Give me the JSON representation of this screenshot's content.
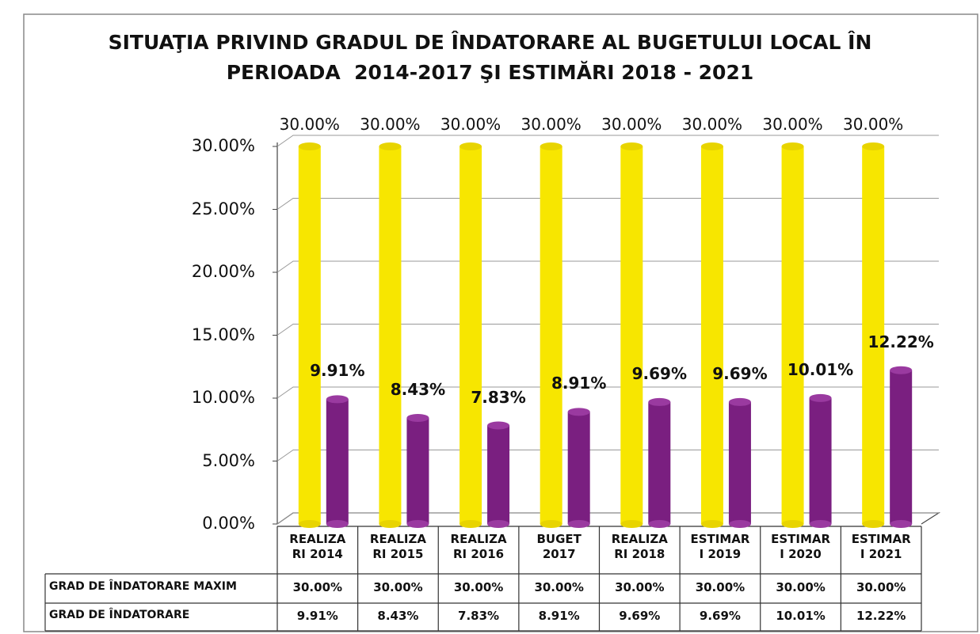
{
  "chart_data": {
    "type": "bar",
    "title": [
      "SITUAŢIA PRIVIND GRADUL DE ÎNDATORARE AL BUGETULUI LOCAL ÎN",
      "PERIOADA  2014-2017 ŞI ESTIMĂRI 2018 - 2021"
    ],
    "categories": [
      "REALIZA\nRI 2014",
      "REALIZA\nRI 2015",
      "REALIZA\nRI 2016",
      "BUGET\n2017",
      "REALIZA\nRI 2018",
      "ESTIMAR\nI 2019",
      "ESTIMAR\nI 2020",
      "ESTIMAR\nI 2021"
    ],
    "series": [
      {
        "name": "GRAD DE ÎNDATORARE MAXIM",
        "color": "#f7e600",
        "values": [
          30,
          30,
          30,
          30,
          30,
          30,
          30,
          30
        ],
        "value_labels": [
          "30.00%",
          "30.00%",
          "30.00%",
          "30.00%",
          "30.00%",
          "30.00%",
          "30.00%",
          "30.00%"
        ]
      },
      {
        "name": "GRAD DE ÎNDATORARE",
        "color": "#7a1f80",
        "values": [
          9.91,
          8.43,
          7.83,
          8.91,
          9.69,
          9.69,
          10.01,
          12.22
        ],
        "value_labels": [
          "9.91%",
          "8.43%",
          "7.83%",
          "8.91%",
          "9.69%",
          "9.69%",
          "10.01%",
          "12.22%"
        ]
      }
    ],
    "ylim": [
      0,
      30
    ],
    "yticks": [
      {
        "value": 0,
        "label": "0.00%"
      },
      {
        "value": 5,
        "label": "5.00%"
      },
      {
        "value": 10,
        "label": "10.00%"
      },
      {
        "value": 15,
        "label": "15.00%"
      },
      {
        "value": 20,
        "label": "20.00%"
      },
      {
        "value": 25,
        "label": "25.00%"
      },
      {
        "value": 30,
        "label": "30.00%"
      }
    ],
    "grid": true
  }
}
